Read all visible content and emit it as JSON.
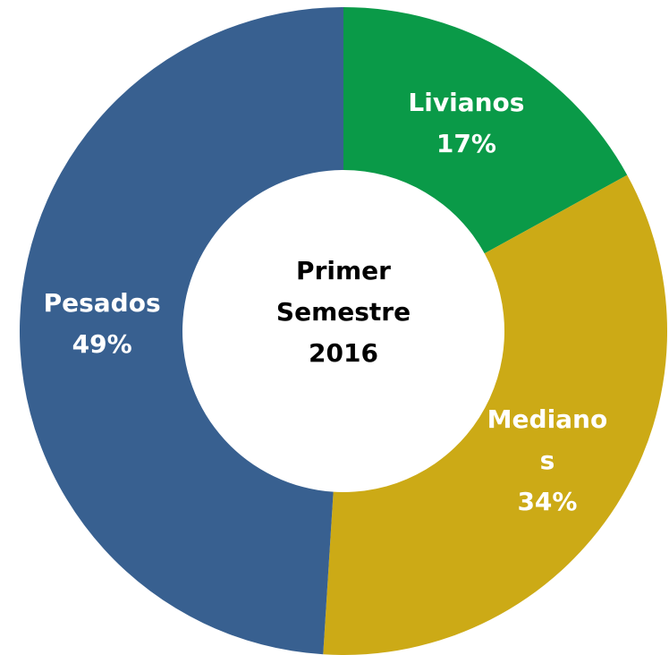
{
  "chart_data": {
    "type": "donut",
    "title": "Primer Semestre 2016",
    "categories": [
      "Livianos",
      "Medianos",
      "Pesados"
    ],
    "values": [
      17,
      34,
      49
    ],
    "value_labels": [
      "17%",
      "34%",
      "49%"
    ],
    "colors": [
      "#0a9a48",
      "#ccaa16",
      "#386090"
    ]
  }
}
